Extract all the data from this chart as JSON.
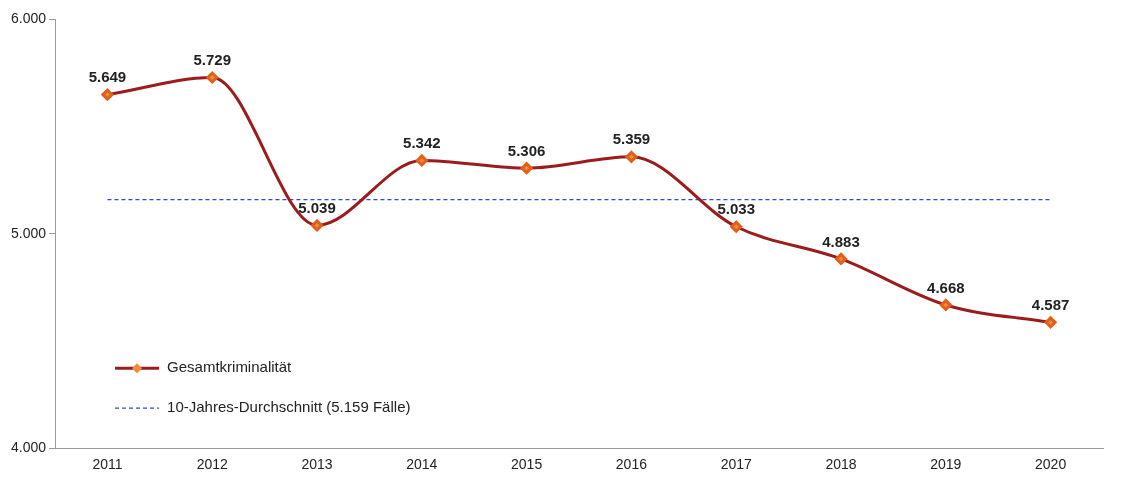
{
  "chart_data": {
    "type": "line",
    "categories": [
      "2011",
      "2012",
      "2013",
      "2014",
      "2015",
      "2016",
      "2017",
      "2018",
      "2019",
      "2020"
    ],
    "series": [
      {
        "name": "Gesamtkriminalität",
        "color": "#9b1c1c",
        "values": [
          5649,
          5729,
          5039,
          5342,
          5306,
          5359,
          5033,
          4883,
          4668,
          4587
        ],
        "value_labels": [
          "5.649",
          "5.729",
          "5.039",
          "5.342",
          "5.306",
          "5.359",
          "5.033",
          "4.883",
          "4.668",
          "4.587"
        ]
      }
    ],
    "ylim": [
      4000,
      6000
    ],
    "yticks": [
      {
        "value": 4000,
        "label": "4.000"
      },
      {
        "value": 5000,
        "label": "5.000"
      },
      {
        "value": 6000,
        "label": "6.000"
      }
    ],
    "ref_lines": [
      {
        "axis": "y",
        "value": 5159,
        "label": "10-Jahres-Durchschnitt (5.159 Fälle)",
        "color": "#3344dd",
        "line_style": "dashed"
      }
    ],
    "marker": "diamond",
    "grid": false,
    "legend": "bottom left"
  }
}
